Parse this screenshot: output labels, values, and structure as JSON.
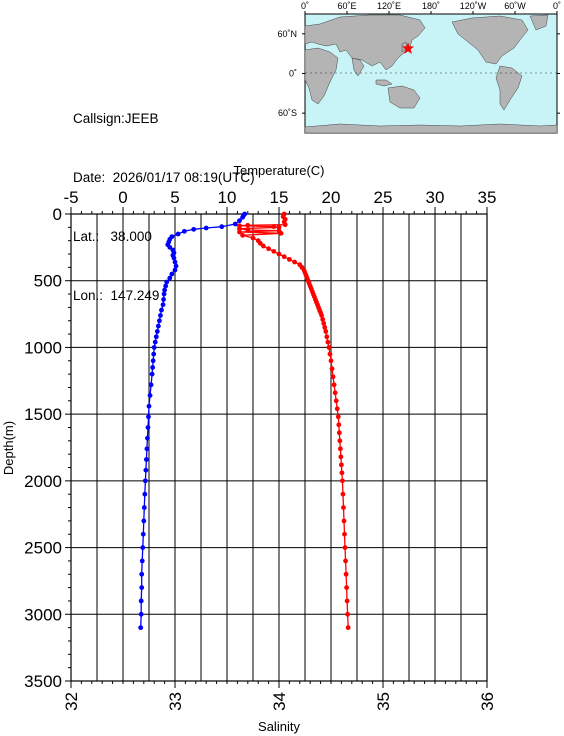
{
  "info": {
    "callsign": "Callsign:JEEB",
    "date_label": "Date:",
    "date_value": "2026/01/17 08:19(UTC)",
    "lat_label": "Lat.:",
    "lat_value": "38.000",
    "lon_label": "Lon.:",
    "lon_value": "147.249"
  },
  "map": {
    "lon_labels": [
      "0˚",
      "60˚E",
      "120˚E",
      "180˚",
      "120˚W",
      "60˚W",
      "0˚"
    ],
    "lat_labels": [
      "60˚N",
      "0˚",
      "60˚S"
    ],
    "ocean_color": "#c8f4f8",
    "land_color": "#b4b4b4",
    "marker": {
      "lat": 38.0,
      "lon": 147.249,
      "symbol": "star",
      "color": "#ff0000"
    }
  },
  "chart_data": {
    "type": "line",
    "top_axis": {
      "label": "Temperature(C)",
      "range": [
        -5,
        35
      ],
      "ticks": [
        "-5",
        "0",
        "5",
        "10",
        "15",
        "20",
        "25",
        "30",
        "35"
      ]
    },
    "bottom_axis": {
      "label": "Salinity",
      "range": [
        32,
        36
      ],
      "ticks": [
        "32",
        "33",
        "34",
        "35",
        "36"
      ]
    },
    "y_axis": {
      "label": "Depth(m)",
      "range": [
        0,
        3500
      ],
      "inverted": true,
      "ticks": [
        "0",
        "500",
        "1000",
        "1500",
        "2000",
        "2500",
        "3000",
        "3500"
      ]
    },
    "grid": true,
    "series": [
      {
        "axis": "temperature",
        "color": "#0000ff",
        "points": [
          [
            11.7,
            0
          ],
          [
            11.6,
            10
          ],
          [
            11.5,
            25
          ],
          [
            11.2,
            50
          ],
          [
            10.8,
            75
          ],
          [
            9.5,
            95
          ],
          [
            8,
            105
          ],
          [
            6.8,
            115
          ],
          [
            5.9,
            130
          ],
          [
            5.3,
            150
          ],
          [
            4.7,
            170
          ],
          [
            4.5,
            190
          ],
          [
            4.4,
            210
          ],
          [
            4.3,
            230
          ],
          [
            4.5,
            250
          ],
          [
            4.8,
            270
          ],
          [
            4.9,
            290
          ],
          [
            4.8,
            310
          ],
          [
            4.9,
            330
          ],
          [
            5.0,
            360
          ],
          [
            5.1,
            390
          ],
          [
            5.0,
            420
          ],
          [
            4.7,
            450
          ],
          [
            4.5,
            480
          ],
          [
            4.2,
            510
          ],
          [
            4.1,
            540
          ],
          [
            4.0,
            570
          ],
          [
            3.95,
            600
          ],
          [
            3.9,
            640
          ],
          [
            3.85,
            680
          ],
          [
            3.7,
            720
          ],
          [
            3.6,
            760
          ],
          [
            3.5,
            800
          ],
          [
            3.4,
            840
          ],
          [
            3.3,
            880
          ],
          [
            3.2,
            920
          ],
          [
            3.1,
            960
          ],
          [
            3.0,
            1000
          ],
          [
            2.95,
            1050
          ],
          [
            2.9,
            1100
          ],
          [
            2.85,
            1150
          ],
          [
            2.8,
            1200
          ],
          [
            2.7,
            1280
          ],
          [
            2.6,
            1360
          ],
          [
            2.5,
            1440
          ],
          [
            2.45,
            1520
          ],
          [
            2.4,
            1600
          ],
          [
            2.35,
            1680
          ],
          [
            2.3,
            1760
          ],
          [
            2.25,
            1840
          ],
          [
            2.2,
            1920
          ],
          [
            2.15,
            2000
          ],
          [
            2.1,
            2100
          ],
          [
            2.05,
            2200
          ],
          [
            2.0,
            2300
          ],
          [
            1.95,
            2400
          ],
          [
            1.9,
            2500
          ],
          [
            1.85,
            2600
          ],
          [
            1.8,
            2700
          ],
          [
            1.8,
            2800
          ],
          [
            1.75,
            2900
          ],
          [
            1.75,
            3000
          ],
          [
            1.7,
            3100
          ]
        ]
      },
      {
        "axis": "salinity",
        "color": "#ff0000",
        "points": [
          [
            34.05,
            0
          ],
          [
            34.04,
            20
          ],
          [
            34.06,
            40
          ],
          [
            34.05,
            60
          ],
          [
            34.06,
            80
          ],
          [
            33.7,
            85
          ],
          [
            33.62,
            88
          ],
          [
            33.95,
            95
          ],
          [
            34.0,
            100
          ],
          [
            33.62,
            110
          ],
          [
            33.7,
            120
          ],
          [
            34.0,
            125
          ],
          [
            33.62,
            135
          ],
          [
            34.02,
            145
          ],
          [
            33.65,
            160
          ],
          [
            33.75,
            180
          ],
          [
            33.8,
            200
          ],
          [
            33.82,
            220
          ],
          [
            33.85,
            240
          ],
          [
            33.9,
            260
          ],
          [
            33.95,
            280
          ],
          [
            34.0,
            300
          ],
          [
            34.05,
            320
          ],
          [
            34.1,
            340
          ],
          [
            34.15,
            360
          ],
          [
            34.2,
            380
          ],
          [
            34.22,
            400
          ],
          [
            34.24,
            420
          ],
          [
            34.25,
            440
          ],
          [
            34.26,
            460
          ],
          [
            34.27,
            480
          ],
          [
            34.28,
            500
          ],
          [
            34.29,
            520
          ],
          [
            34.3,
            540
          ],
          [
            34.31,
            560
          ],
          [
            34.32,
            580
          ],
          [
            34.33,
            600
          ],
          [
            34.34,
            620
          ],
          [
            34.35,
            640
          ],
          [
            34.36,
            660
          ],
          [
            34.37,
            680
          ],
          [
            34.38,
            700
          ],
          [
            34.39,
            720
          ],
          [
            34.4,
            740
          ],
          [
            34.41,
            760
          ],
          [
            34.42,
            790
          ],
          [
            34.43,
            820
          ],
          [
            34.44,
            850
          ],
          [
            34.45,
            880
          ],
          [
            34.46,
            920
          ],
          [
            34.47,
            960
          ],
          [
            34.48,
            1000
          ],
          [
            34.49,
            1050
          ],
          [
            34.5,
            1100
          ],
          [
            34.51,
            1160
          ],
          [
            34.52,
            1220
          ],
          [
            34.53,
            1280
          ],
          [
            34.54,
            1340
          ],
          [
            34.55,
            1400
          ],
          [
            34.56,
            1460
          ],
          [
            34.57,
            1520
          ],
          [
            34.575,
            1580
          ],
          [
            34.58,
            1640
          ],
          [
            34.585,
            1700
          ],
          [
            34.59,
            1760
          ],
          [
            34.595,
            1820
          ],
          [
            34.6,
            1880
          ],
          [
            34.605,
            1940
          ],
          [
            34.61,
            2000
          ],
          [
            34.615,
            2100
          ],
          [
            34.62,
            2200
          ],
          [
            34.625,
            2300
          ],
          [
            34.63,
            2400
          ],
          [
            34.635,
            2500
          ],
          [
            34.64,
            2600
          ],
          [
            34.645,
            2700
          ],
          [
            34.65,
            2800
          ],
          [
            34.655,
            2900
          ],
          [
            34.66,
            3000
          ],
          [
            34.665,
            3100
          ]
        ]
      }
    ]
  }
}
